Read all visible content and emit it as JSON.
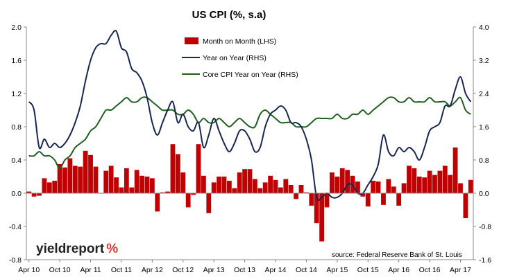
{
  "chart_data": {
    "type": "bar+line",
    "title": "US CPI (%, s.a)",
    "source": "source: Federal Reserve Bank of St. Louis",
    "logo": {
      "main": "yieldreport",
      "symbol": "%"
    },
    "colors": {
      "mom": "#c00000",
      "yoy": "#17264f",
      "core": "#1f5c20",
      "axis": "#888888"
    },
    "x_tick_labels": [
      "Apr 10",
      "Oct 10",
      "Apr 11",
      "Oct 11",
      "Apr 12",
      "Oct 12",
      "Apr 13",
      "Oct 13",
      "Apr 14",
      "Oct 14",
      "Apr 15",
      "Oct 15",
      "Apr 16",
      "Oct 16",
      "Apr 17"
    ],
    "lhs": {
      "ylim": [
        -0.8,
        2.0
      ],
      "ticks": [
        -0.8,
        -0.4,
        0.0,
        0.4,
        0.8,
        1.2,
        1.6,
        2.0
      ],
      "labels": [
        "-0.8",
        "-0.4",
        "0.0",
        "0.4",
        "0.8",
        "1.2",
        "1.6",
        "2.0"
      ]
    },
    "rhs": {
      "ylim": [
        -1.6,
        4.0
      ],
      "ticks": [
        -1.6,
        -0.8,
        0.0,
        0.8,
        1.6,
        2.4,
        3.2,
        4.0
      ],
      "labels": [
        "-1.6",
        "-0.8",
        "0.0",
        "0.8",
        "1.6",
        "2.4",
        "3.2",
        "4.0"
      ]
    },
    "series": [
      {
        "name": "Month on Month (LHS)",
        "type": "bar",
        "axis": "lhs",
        "values": [
          0.02,
          -0.04,
          -0.03,
          0.18,
          0.13,
          0.15,
          0.35,
          0.31,
          0.42,
          0.33,
          0.32,
          0.51,
          0.46,
          0.32,
          0.0,
          0.27,
          0.33,
          0.19,
          0.07,
          0.3,
          0.07,
          0.28,
          0.21,
          0.2,
          0.18,
          -0.22,
          0.01,
          0.02,
          0.59,
          0.47,
          0.25,
          -0.17,
          -0.02,
          0.59,
          0.21,
          -0.24,
          0.13,
          0.2,
          0.2,
          0.15,
          0.06,
          0.25,
          0.29,
          0.29,
          0.17,
          0.06,
          0.13,
          0.21,
          0.16,
          0.07,
          0.17,
          0.1,
          -0.07,
          0.1,
          0.01,
          -0.15,
          -0.36,
          -0.58,
          -0.17,
          0.25,
          0.2,
          0.3,
          0.28,
          0.21,
          0.14,
          -0.04,
          -0.16,
          0.15,
          0.14,
          -0.14,
          0.17,
          0.08,
          -0.15,
          0.12,
          0.33,
          0.3,
          0.2,
          0.19,
          0.27,
          0.22,
          0.27,
          0.33,
          0.22,
          0.55,
          0.12,
          -0.3,
          0.16
        ]
      },
      {
        "name": "Year on Year (RHS)",
        "type": "line",
        "axis": "rhs",
        "values": [
          2.2,
          2.0,
          1.1,
          1.3,
          1.1,
          1.2,
          1.1,
          1.2,
          1.4,
          1.7,
          2.1,
          2.7,
          3.2,
          3.5,
          3.6,
          3.6,
          3.8,
          3.9,
          3.5,
          3.4,
          3.0,
          2.9,
          2.7,
          2.3,
          1.7,
          1.4,
          1.7,
          2.0,
          2.2,
          1.7,
          1.9,
          1.6,
          1.5,
          1.7,
          1.1,
          1.4,
          1.8,
          1.5,
          1.2,
          1.0,
          1.2,
          1.5,
          1.5,
          1.3,
          1.0,
          1.1,
          1.6,
          1.9,
          2.0,
          2.1,
          2.0,
          1.7,
          1.7,
          1.6,
          1.3,
          0.8,
          -0.1,
          -0.1,
          0.0,
          -0.1,
          -0.1,
          0.0,
          0.2,
          0.2,
          0.0,
          0.0,
          0.2,
          0.4,
          0.7,
          1.4,
          1.0,
          0.9,
          1.1,
          1.0,
          1.1,
          1.0,
          0.8,
          1.1,
          1.5,
          1.6,
          1.7,
          2.1,
          2.1,
          2.5,
          2.8,
          2.4,
          2.2
        ]
      },
      {
        "name": "Core CPI Year on Year (RHS)",
        "type": "line",
        "axis": "rhs",
        "values": [
          0.9,
          0.9,
          1.0,
          0.9,
          0.9,
          0.8,
          0.6,
          0.8,
          0.9,
          1.1,
          1.2,
          1.3,
          1.5,
          1.6,
          1.8,
          2.0,
          2.0,
          2.1,
          2.2,
          2.3,
          2.2,
          2.2,
          2.3,
          2.3,
          2.2,
          2.1,
          2.0,
          2.0,
          2.0,
          1.9,
          1.9,
          2.0,
          1.9,
          1.7,
          1.8,
          1.7,
          1.7,
          1.8,
          1.7,
          1.6,
          1.7,
          1.8,
          1.7,
          1.6,
          1.6,
          1.9,
          2.0,
          1.9,
          1.8,
          1.7,
          1.7,
          1.7,
          1.6,
          1.6,
          1.6,
          1.7,
          1.8,
          1.8,
          1.8,
          1.8,
          1.9,
          1.8,
          1.8,
          1.9,
          1.9,
          2.0,
          1.9,
          2.0,
          2.1,
          2.2,
          2.3,
          2.3,
          2.2,
          2.2,
          2.3,
          2.2,
          2.2,
          2.2,
          2.3,
          2.2,
          2.2,
          2.2,
          2.1,
          2.2,
          2.3,
          2.0,
          1.9
        ]
      }
    ]
  }
}
